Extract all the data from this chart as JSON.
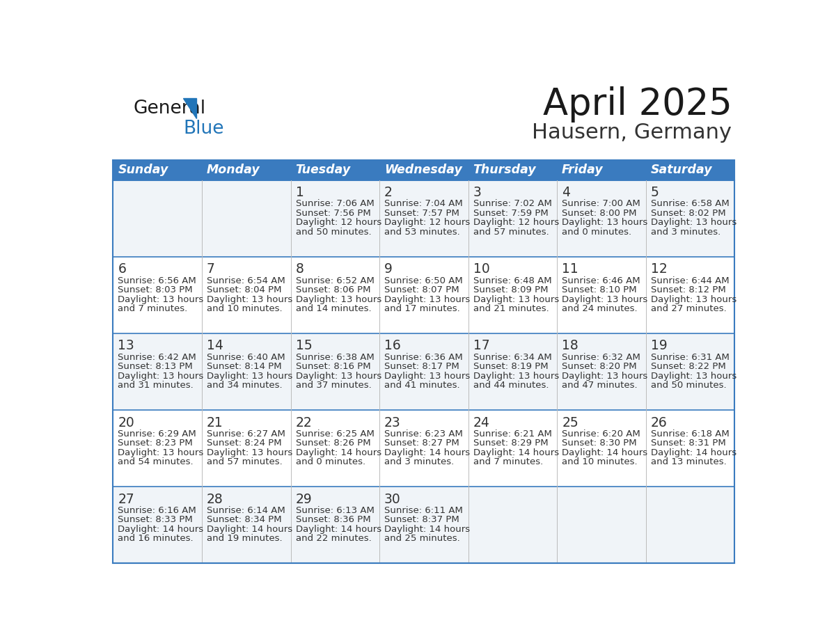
{
  "title": "April 2025",
  "subtitle": "Hausern, Germany",
  "header_bg_color": "#3a7bbf",
  "header_text_color": "#ffffff",
  "row_bg_colors": [
    "#f0f4f8",
    "#ffffff",
    "#f0f4f8",
    "#ffffff",
    "#f0f4f8"
  ],
  "divider_color": "#3a7bbf",
  "text_color": "#444444",
  "day_num_color": "#333333",
  "cell_text_color": "#333333",
  "day_headers": [
    "Sunday",
    "Monday",
    "Tuesday",
    "Wednesday",
    "Thursday",
    "Friday",
    "Saturday"
  ],
  "days": [
    {
      "day": 1,
      "row": 0,
      "col": 2,
      "sunrise": "7:06 AM",
      "sunset": "7:56 PM",
      "daylight": "12 hours and 50 minutes."
    },
    {
      "day": 2,
      "row": 0,
      "col": 3,
      "sunrise": "7:04 AM",
      "sunset": "7:57 PM",
      "daylight": "12 hours and 53 minutes."
    },
    {
      "day": 3,
      "row": 0,
      "col": 4,
      "sunrise": "7:02 AM",
      "sunset": "7:59 PM",
      "daylight": "12 hours and 57 minutes."
    },
    {
      "day": 4,
      "row": 0,
      "col": 5,
      "sunrise": "7:00 AM",
      "sunset": "8:00 PM",
      "daylight": "13 hours and 0 minutes."
    },
    {
      "day": 5,
      "row": 0,
      "col": 6,
      "sunrise": "6:58 AM",
      "sunset": "8:02 PM",
      "daylight": "13 hours and 3 minutes."
    },
    {
      "day": 6,
      "row": 1,
      "col": 0,
      "sunrise": "6:56 AM",
      "sunset": "8:03 PM",
      "daylight": "13 hours and 7 minutes."
    },
    {
      "day": 7,
      "row": 1,
      "col": 1,
      "sunrise": "6:54 AM",
      "sunset": "8:04 PM",
      "daylight": "13 hours and 10 minutes."
    },
    {
      "day": 8,
      "row": 1,
      "col": 2,
      "sunrise": "6:52 AM",
      "sunset": "8:06 PM",
      "daylight": "13 hours and 14 minutes."
    },
    {
      "day": 9,
      "row": 1,
      "col": 3,
      "sunrise": "6:50 AM",
      "sunset": "8:07 PM",
      "daylight": "13 hours and 17 minutes."
    },
    {
      "day": 10,
      "row": 1,
      "col": 4,
      "sunrise": "6:48 AM",
      "sunset": "8:09 PM",
      "daylight": "13 hours and 21 minutes."
    },
    {
      "day": 11,
      "row": 1,
      "col": 5,
      "sunrise": "6:46 AM",
      "sunset": "8:10 PM",
      "daylight": "13 hours and 24 minutes."
    },
    {
      "day": 12,
      "row": 1,
      "col": 6,
      "sunrise": "6:44 AM",
      "sunset": "8:12 PM",
      "daylight": "13 hours and 27 minutes."
    },
    {
      "day": 13,
      "row": 2,
      "col": 0,
      "sunrise": "6:42 AM",
      "sunset": "8:13 PM",
      "daylight": "13 hours and 31 minutes."
    },
    {
      "day": 14,
      "row": 2,
      "col": 1,
      "sunrise": "6:40 AM",
      "sunset": "8:14 PM",
      "daylight": "13 hours and 34 minutes."
    },
    {
      "day": 15,
      "row": 2,
      "col": 2,
      "sunrise": "6:38 AM",
      "sunset": "8:16 PM",
      "daylight": "13 hours and 37 minutes."
    },
    {
      "day": 16,
      "row": 2,
      "col": 3,
      "sunrise": "6:36 AM",
      "sunset": "8:17 PM",
      "daylight": "13 hours and 41 minutes."
    },
    {
      "day": 17,
      "row": 2,
      "col": 4,
      "sunrise": "6:34 AM",
      "sunset": "8:19 PM",
      "daylight": "13 hours and 44 minutes."
    },
    {
      "day": 18,
      "row": 2,
      "col": 5,
      "sunrise": "6:32 AM",
      "sunset": "8:20 PM",
      "daylight": "13 hours and 47 minutes."
    },
    {
      "day": 19,
      "row": 2,
      "col": 6,
      "sunrise": "6:31 AM",
      "sunset": "8:22 PM",
      "daylight": "13 hours and 50 minutes."
    },
    {
      "day": 20,
      "row": 3,
      "col": 0,
      "sunrise": "6:29 AM",
      "sunset": "8:23 PM",
      "daylight": "13 hours and 54 minutes."
    },
    {
      "day": 21,
      "row": 3,
      "col": 1,
      "sunrise": "6:27 AM",
      "sunset": "8:24 PM",
      "daylight": "13 hours and 57 minutes."
    },
    {
      "day": 22,
      "row": 3,
      "col": 2,
      "sunrise": "6:25 AM",
      "sunset": "8:26 PM",
      "daylight": "14 hours and 0 minutes."
    },
    {
      "day": 23,
      "row": 3,
      "col": 3,
      "sunrise": "6:23 AM",
      "sunset": "8:27 PM",
      "daylight": "14 hours and 3 minutes."
    },
    {
      "day": 24,
      "row": 3,
      "col": 4,
      "sunrise": "6:21 AM",
      "sunset": "8:29 PM",
      "daylight": "14 hours and 7 minutes."
    },
    {
      "day": 25,
      "row": 3,
      "col": 5,
      "sunrise": "6:20 AM",
      "sunset": "8:30 PM",
      "daylight": "14 hours and 10 minutes."
    },
    {
      "day": 26,
      "row": 3,
      "col": 6,
      "sunrise": "6:18 AM",
      "sunset": "8:31 PM",
      "daylight": "14 hours and 13 minutes."
    },
    {
      "day": 27,
      "row": 4,
      "col": 0,
      "sunrise": "6:16 AM",
      "sunset": "8:33 PM",
      "daylight": "14 hours and 16 minutes."
    },
    {
      "day": 28,
      "row": 4,
      "col": 1,
      "sunrise": "6:14 AM",
      "sunset": "8:34 PM",
      "daylight": "14 hours and 19 minutes."
    },
    {
      "day": 29,
      "row": 4,
      "col": 2,
      "sunrise": "6:13 AM",
      "sunset": "8:36 PM",
      "daylight": "14 hours and 22 minutes."
    },
    {
      "day": 30,
      "row": 4,
      "col": 3,
      "sunrise": "6:11 AM",
      "sunset": "8:37 PM",
      "daylight": "14 hours and 25 minutes."
    }
  ],
  "logo_color_general": "#1a1a1a",
  "logo_color_blue": "#2175b8",
  "logo_triangle_color": "#2175b8",
  "title_color": "#1a1a1a",
  "subtitle_color": "#333333"
}
